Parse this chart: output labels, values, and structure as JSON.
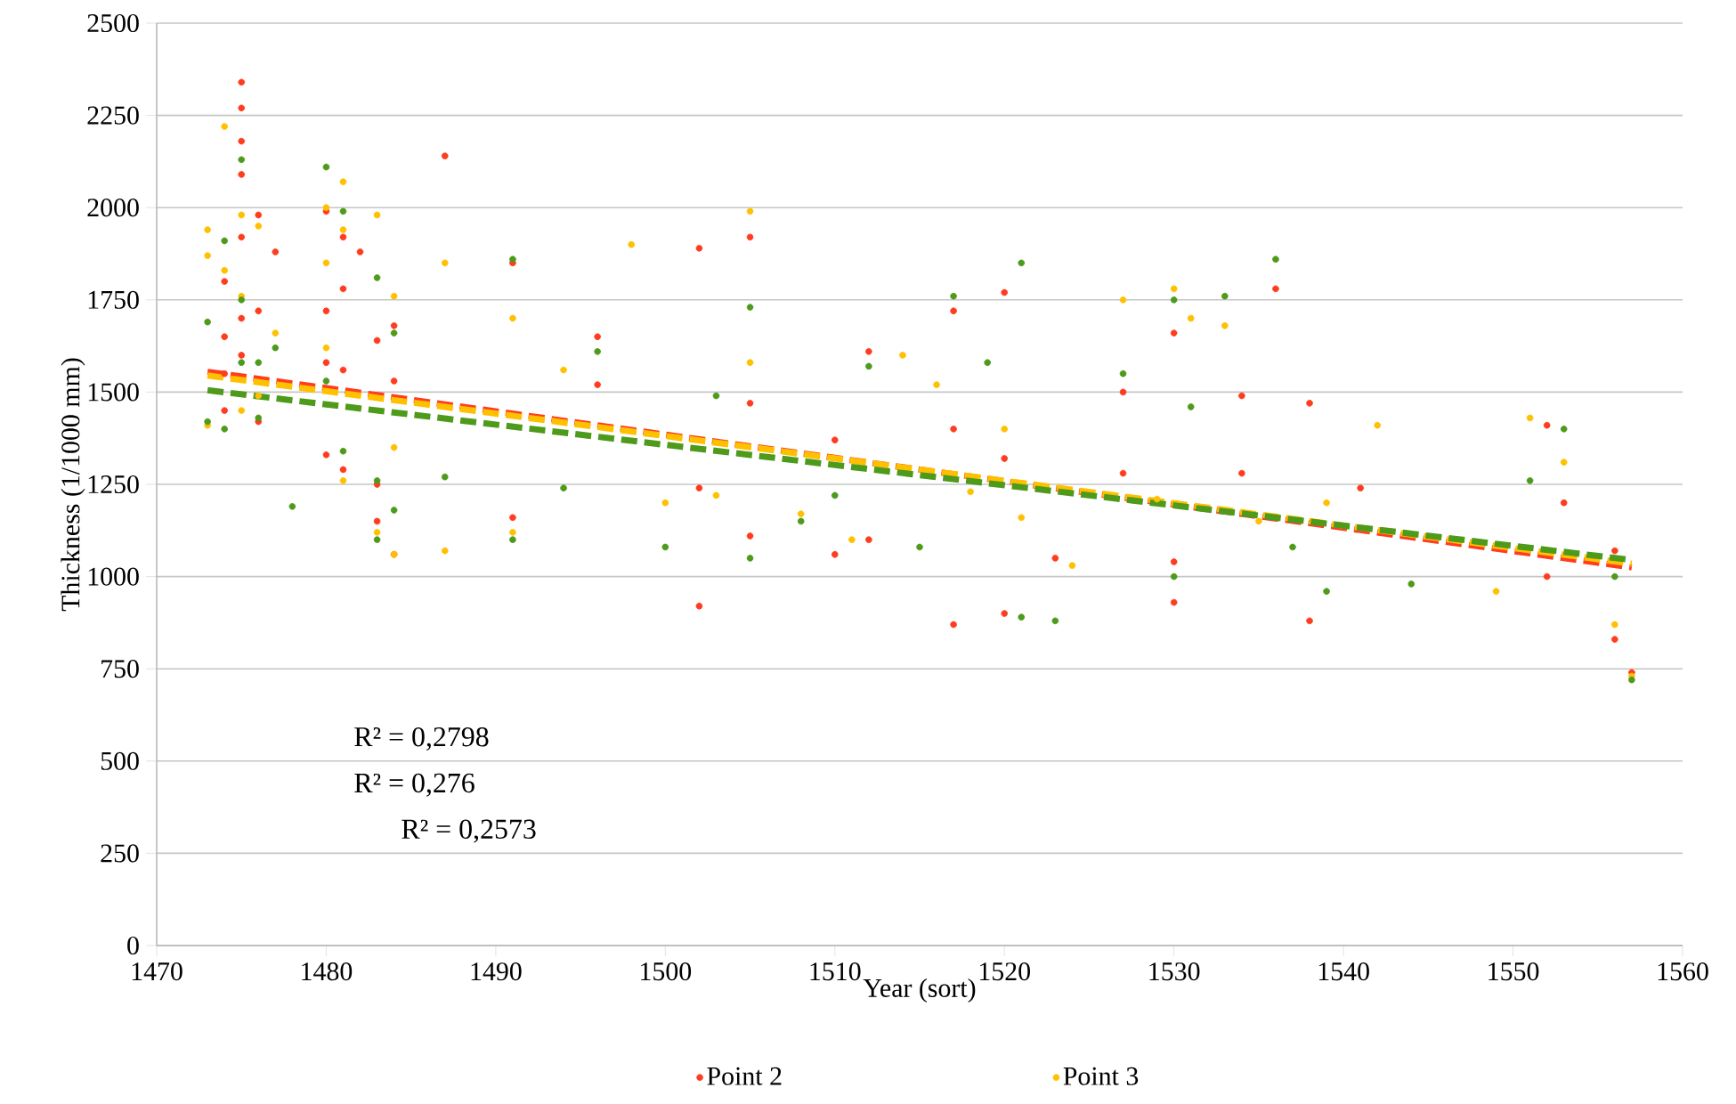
{
  "chart_data": {
    "type": "scatter",
    "xlabel": "Year (sort)",
    "ylabel": "Thickness (1/1000 mm)",
    "xlim": [
      1470,
      1560
    ],
    "ylim": [
      0,
      2500
    ],
    "xticks": [
      1470,
      1480,
      1490,
      1500,
      1510,
      1520,
      1530,
      1540,
      1550,
      1560
    ],
    "yticks": [
      0,
      250,
      500,
      750,
      1000,
      1250,
      1500,
      1750,
      2000,
      2250,
      2500
    ],
    "grid": "y",
    "legend": "bottom",
    "annotations": [
      "R² = 0,2798",
      "R² = 0,276",
      "R² = 0,2573"
    ],
    "series": [
      {
        "name": "Point 2",
        "marker": "circle",
        "color": "#ff3c1f",
        "x": [
          1474,
          1474,
          1474,
          1474,
          1475,
          1475,
          1475,
          1475,
          1475,
          1475,
          1475,
          1476,
          1476,
          1476,
          1477,
          1480,
          1480,
          1480,
          1480,
          1481,
          1481,
          1481,
          1481,
          1482,
          1483,
          1483,
          1483,
          1484,
          1484,
          1484,
          1487,
          1491,
          1491,
          1496,
          1496,
          1502,
          1502,
          1502,
          1505,
          1505,
          1505,
          1510,
          1510,
          1512,
          1512,
          1517,
          1517,
          1517,
          1520,
          1520,
          1520,
          1523,
          1527,
          1527,
          1530,
          1530,
          1530,
          1534,
          1534,
          1536,
          1538,
          1538,
          1541,
          1552,
          1552,
          1553,
          1556,
          1556,
          1557
        ],
        "values": [
          1800,
          1650,
          1550,
          1450,
          2340,
          2270,
          2180,
          2090,
          1920,
          1700,
          1600,
          1980,
          1720,
          1420,
          1880,
          1990,
          1720,
          1580,
          1330,
          1920,
          1780,
          1560,
          1290,
          1880,
          1640,
          1250,
          1150,
          1680,
          1530,
          1060,
          2140,
          1850,
          1160,
          1650,
          1520,
          1890,
          1240,
          920,
          1920,
          1470,
          1110,
          1370,
          1060,
          1610,
          1100,
          1720,
          1400,
          870,
          1770,
          1320,
          900,
          1050,
          1500,
          1280,
          1660,
          1040,
          930,
          1490,
          1280,
          1780,
          1470,
          880,
          1240,
          1410,
          1000,
          1200,
          1070,
          830,
          740
        ]
      },
      {
        "name": "Point 3",
        "marker": "circle",
        "color": "#ffc000",
        "x": [
          1473,
          1473,
          1473,
          1474,
          1474,
          1475,
          1475,
          1475,
          1476,
          1476,
          1477,
          1480,
          1480,
          1480,
          1481,
          1481,
          1481,
          1483,
          1483,
          1484,
          1484,
          1484,
          1487,
          1487,
          1491,
          1491,
          1494,
          1498,
          1500,
          1503,
          1505,
          1505,
          1508,
          1511,
          1514,
          1516,
          1518,
          1520,
          1521,
          1524,
          1527,
          1529,
          1530,
          1531,
          1533,
          1535,
          1539,
          1542,
          1549,
          1551,
          1553,
          1556,
          1557
        ],
        "values": [
          1940,
          1870,
          1410,
          2220,
          1830,
          1980,
          1760,
          1450,
          1950,
          1490,
          1660,
          2000,
          1850,
          1620,
          2070,
          1940,
          1260,
          1980,
          1120,
          1760,
          1350,
          1060,
          1850,
          1070,
          1700,
          1120,
          1560,
          1900,
          1200,
          1220,
          1990,
          1580,
          1170,
          1100,
          1600,
          1520,
          1230,
          1400,
          1160,
          1030,
          1750,
          1210,
          1780,
          1700,
          1680,
          1150,
          1200,
          1410,
          960,
          1430,
          1310,
          870,
          730
        ]
      },
      {
        "marker": "circle",
        "color": "#4e9a1a",
        "x": [
          1473,
          1473,
          1474,
          1474,
          1475,
          1475,
          1475,
          1476,
          1476,
          1477,
          1478,
          1480,
          1480,
          1481,
          1481,
          1483,
          1483,
          1483,
          1484,
          1484,
          1487,
          1491,
          1491,
          1494,
          1496,
          1500,
          1503,
          1505,
          1505,
          1508,
          1510,
          1512,
          1515,
          1517,
          1519,
          1521,
          1521,
          1523,
          1527,
          1530,
          1530,
          1531,
          1533,
          1536,
          1537,
          1539,
          1544,
          1551,
          1553,
          1556,
          1557
        ],
        "values": [
          1690,
          1420,
          1910,
          1400,
          2130,
          1750,
          1580,
          1580,
          1430,
          1620,
          1190,
          2110,
          1530,
          1990,
          1340,
          1810,
          1260,
          1100,
          1660,
          1180,
          1270,
          1860,
          1100,
          1240,
          1610,
          1080,
          1490,
          1730,
          1050,
          1150,
          1220,
          1570,
          1080,
          1760,
          1580,
          1850,
          890,
          880,
          1550,
          1750,
          1000,
          1460,
          1760,
          1860,
          1080,
          960,
          980,
          1260,
          1400,
          1000,
          720
        ]
      },
      {
        "type": "line",
        "marker": "none",
        "line_style": "dashed",
        "color": "#ff3c1f",
        "x": [
          1473,
          1557
        ],
        "values": [
          1555,
          1025
        ]
      },
      {
        "type": "line",
        "marker": "none",
        "line_style": "dashed",
        "color": "#ffc000",
        "x": [
          1473,
          1557
        ],
        "values": [
          1545,
          1035
        ]
      },
      {
        "type": "line",
        "marker": "none",
        "line_style": "dashed",
        "color": "#4e9a1a",
        "x": [
          1473,
          1557
        ],
        "values": [
          1505,
          1045
        ]
      }
    ]
  }
}
